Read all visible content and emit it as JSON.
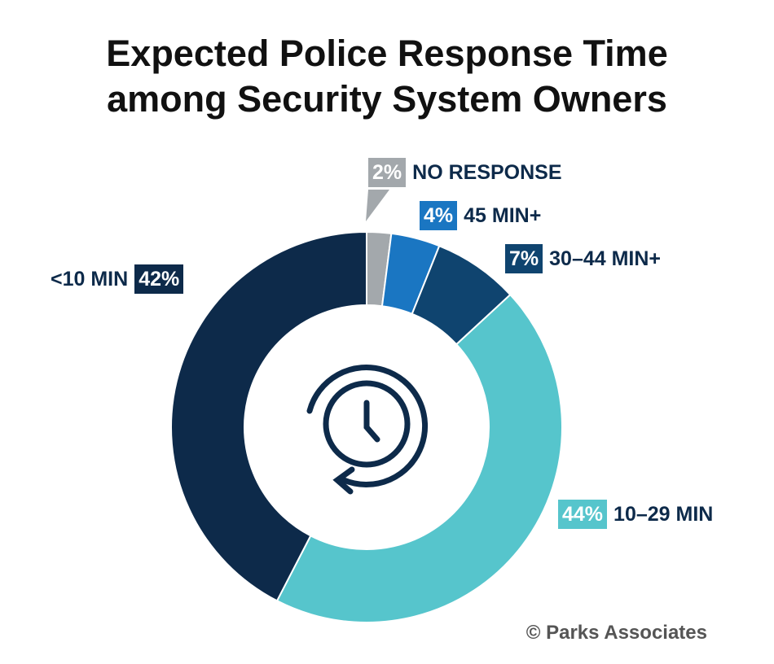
{
  "chart_data": {
    "type": "donut",
    "title": "Expected Police Response Time among Security System Owners",
    "categories": [
      "NO RESPONSE",
      "45 MIN+",
      "30–44 MIN+",
      "10–29 MIN",
      "<10 MIN"
    ],
    "values": [
      2,
      4,
      7,
      44,
      42
    ],
    "value_labels": [
      "2%",
      "4%",
      "7%",
      "44%",
      "42%"
    ],
    "colors": [
      "#a3a8ac",
      "#1a76c2",
      "#0f446f",
      "#56c5cc",
      "#0d2a4a"
    ],
    "source": "© Parks Associates"
  }
}
